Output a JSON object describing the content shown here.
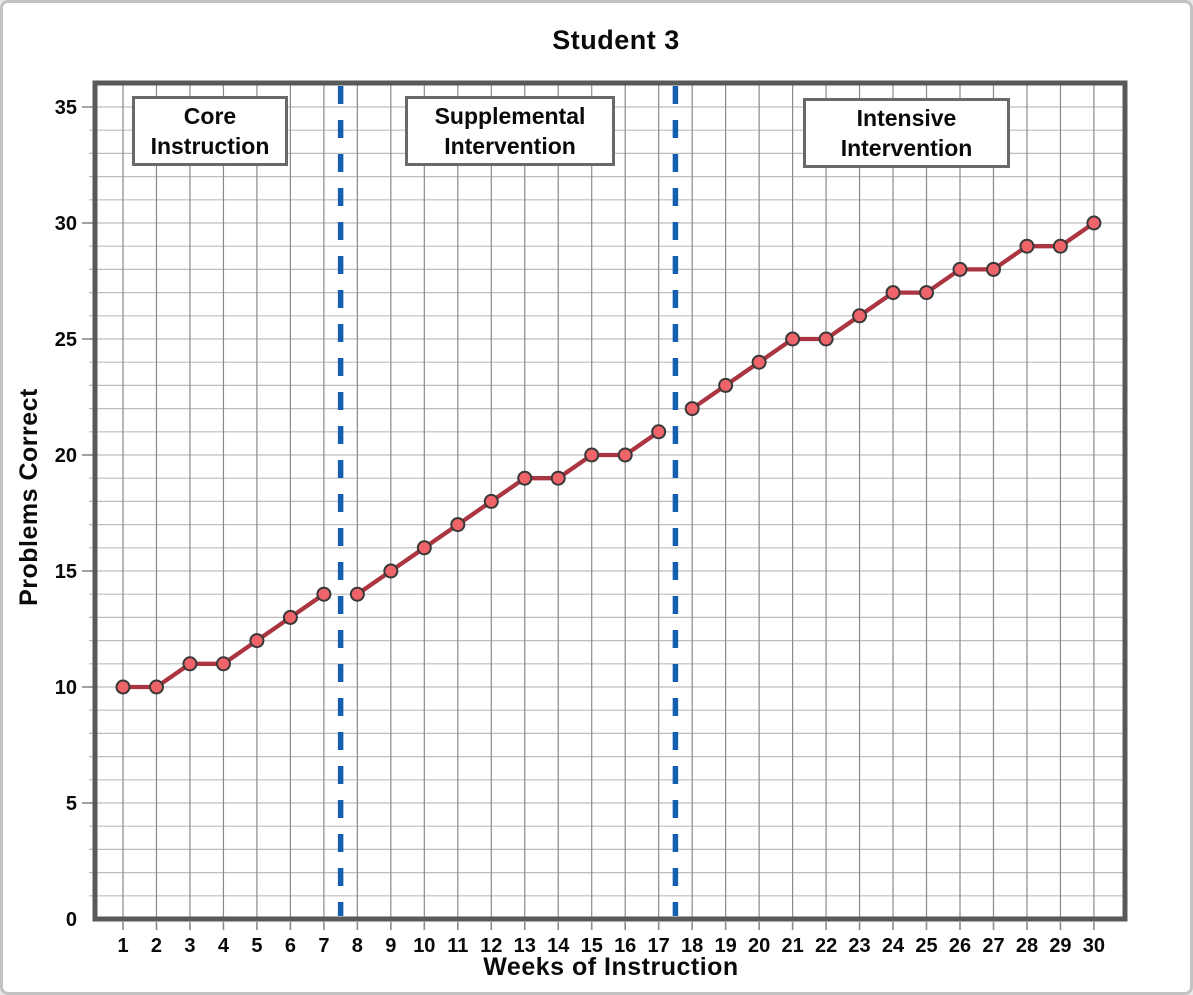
{
  "chart_data": {
    "type": "line",
    "title": "Student 3",
    "xlabel": "Weeks of Instruction",
    "ylabel": "Problems Correct",
    "xlim": [
      0.2,
      31.1
    ],
    "ylim": [
      0,
      36
    ],
    "x_ticks": [
      1,
      2,
      3,
      4,
      5,
      6,
      7,
      8,
      9,
      10,
      11,
      12,
      13,
      14,
      15,
      16,
      17,
      18,
      19,
      20,
      21,
      22,
      23,
      24,
      25,
      26,
      27,
      28,
      29,
      30
    ],
    "y_ticks": [
      0,
      5,
      10,
      15,
      20,
      25,
      30,
      35
    ],
    "grid": {
      "on": true,
      "x_step": 1,
      "y_step": 1
    },
    "legend": "none",
    "phase_boundaries_x": [
      7.5,
      17.5
    ],
    "phases": [
      {
        "name": "Core Instruction",
        "label_lines": [
          "Core",
          "Instruction"
        ],
        "week_range": [
          1,
          7
        ]
      },
      {
        "name": "Supplemental Intervention",
        "label_lines": [
          "Supplemental",
          "Intervention"
        ],
        "week_range": [
          8,
          17
        ]
      },
      {
        "name": "Intensive Intervention",
        "label_lines": [
          "Intensive",
          "Intervention"
        ],
        "week_range": [
          18,
          30
        ]
      }
    ],
    "series": [
      {
        "name": "Core Instruction",
        "x": [
          1,
          2,
          3,
          4,
          5,
          6,
          7
        ],
        "y": [
          10,
          10,
          11,
          11,
          12,
          13,
          14
        ]
      },
      {
        "name": "Supplemental Intervention",
        "x": [
          8,
          9,
          10,
          11,
          12,
          13,
          14,
          15,
          16,
          17
        ],
        "y": [
          14,
          15,
          16,
          17,
          18,
          19,
          19,
          20,
          20,
          21
        ]
      },
      {
        "name": "Intensive Intervention",
        "x": [
          18,
          19,
          20,
          21,
          22,
          23,
          24,
          25,
          26,
          27,
          28,
          29,
          30
        ],
        "y": [
          22,
          23,
          24,
          25,
          25,
          26,
          27,
          27,
          28,
          28,
          29,
          29,
          30
        ]
      }
    ],
    "colors": {
      "line": "#ab3541",
      "marker_fill": "#ee6469",
      "marker_stroke": "#383838",
      "phase_boundary": "#1560ae",
      "plot_border": "#58595b",
      "grid_vertical": "#8a8a8a",
      "grid_horizontal": "#bdbdbd",
      "tick": "#8a8a8a",
      "text": "#0a0a0a",
      "frame_border": "#c2c2c2"
    }
  }
}
